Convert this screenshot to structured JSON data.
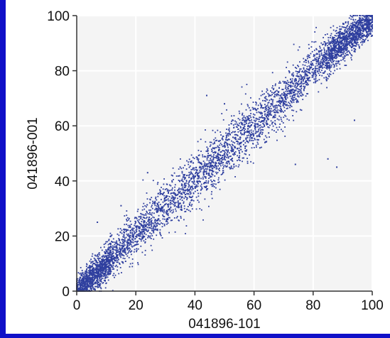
{
  "colors": {
    "background": "#1010c8",
    "panel": "#ffffff",
    "plot_area": "#f4f4f4",
    "grid": "#ffffff",
    "points": "#2f3f9f",
    "axis": "#333333"
  },
  "chart_data": {
    "type": "scatter",
    "title": "",
    "xlabel": "041896-101",
    "ylabel": "041896-001",
    "xlim": [
      0,
      100
    ],
    "ylim": [
      0,
      100
    ],
    "xticks": [
      0,
      20,
      40,
      60,
      80,
      100
    ],
    "yticks": [
      0,
      20,
      40,
      60,
      80,
      100
    ],
    "grid": true,
    "legend": "none",
    "series": [
      {
        "description": "dense cloud of points along the diagonal y ≈ x, approx. 5000 points",
        "trend_points": [
          [
            0,
            0
          ],
          [
            10,
            10
          ],
          [
            20,
            21
          ],
          [
            30,
            30
          ],
          [
            40,
            40
          ],
          [
            50,
            51
          ],
          [
            60,
            60
          ],
          [
            70,
            70
          ],
          [
            80,
            81
          ],
          [
            90,
            90
          ],
          [
            100,
            98
          ]
        ],
        "spread": 3,
        "outliers": [
          [
            24,
            43
          ],
          [
            26,
            22
          ],
          [
            44,
            71
          ],
          [
            56,
            64
          ],
          [
            74,
            46
          ],
          [
            85,
            48
          ],
          [
            88,
            45
          ],
          [
            94,
            62
          ],
          [
            15,
            31
          ],
          [
            35,
            45
          ],
          [
            62,
            52
          ],
          [
            50,
            68
          ],
          [
            7,
            25
          ]
        ]
      }
    ]
  }
}
